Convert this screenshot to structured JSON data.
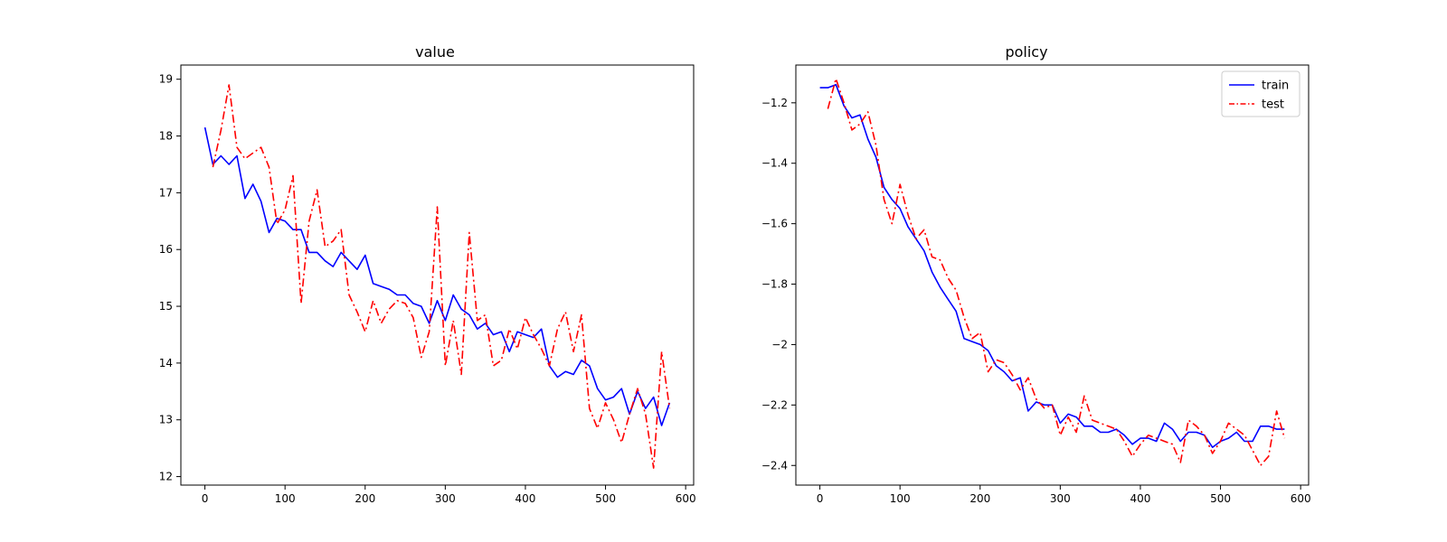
{
  "chart_data": [
    {
      "type": "line",
      "title": "value",
      "xlabel": "",
      "ylabel": "",
      "xlim": [
        -30,
        610
      ],
      "ylim": [
        11.85,
        19.25
      ],
      "xticks": [
        0,
        100,
        200,
        300,
        400,
        500,
        600
      ],
      "yticks": [
        12,
        13,
        14,
        15,
        16,
        17,
        18,
        19
      ],
      "legend": null,
      "series": [
        {
          "name": "train",
          "color": "#0000ff",
          "style": "solid",
          "x": [
            0,
            10,
            20,
            30,
            40,
            50,
            60,
            70,
            80,
            90,
            100,
            110,
            120,
            130,
            140,
            150,
            160,
            170,
            180,
            190,
            200,
            210,
            220,
            230,
            240,
            250,
            260,
            270,
            280,
            290,
            300,
            310,
            320,
            330,
            340,
            350,
            360,
            370,
            380,
            390,
            400,
            410,
            420,
            430,
            440,
            450,
            460,
            470,
            480,
            490,
            500,
            510,
            520,
            530,
            540,
            550,
            560,
            570,
            580
          ],
          "y": [
            18.15,
            17.5,
            17.65,
            17.5,
            17.65,
            16.9,
            17.15,
            16.85,
            16.3,
            16.55,
            16.5,
            16.35,
            16.35,
            15.95,
            15.95,
            15.8,
            15.7,
            15.95,
            15.8,
            15.65,
            15.9,
            15.4,
            15.35,
            15.3,
            15.2,
            15.2,
            15.05,
            15.0,
            14.7,
            15.1,
            14.75,
            15.2,
            14.95,
            14.85,
            14.6,
            14.7,
            14.5,
            14.55,
            14.2,
            14.55,
            14.5,
            14.45,
            14.6,
            13.95,
            13.75,
            13.85,
            13.8,
            14.05,
            13.95,
            13.55,
            13.35,
            13.4,
            13.55,
            13.1,
            13.5,
            13.2,
            13.4,
            12.9,
            13.3
          ]
        },
        {
          "name": "test",
          "color": "#ff0000",
          "style": "dashdot",
          "x": [
            10,
            20,
            30,
            40,
            50,
            60,
            70,
            80,
            90,
            100,
            110,
            120,
            130,
            140,
            150,
            160,
            170,
            180,
            190,
            200,
            210,
            220,
            230,
            240,
            250,
            260,
            270,
            280,
            290,
            300,
            310,
            320,
            330,
            340,
            350,
            360,
            370,
            380,
            390,
            400,
            410,
            420,
            430,
            440,
            450,
            460,
            470,
            480,
            490,
            500,
            510,
            520,
            530,
            540,
            550,
            560,
            570,
            580
          ],
          "y": [
            17.45,
            18.1,
            18.9,
            17.8,
            17.6,
            17.7,
            17.8,
            17.45,
            16.45,
            16.7,
            17.3,
            15.05,
            16.5,
            17.05,
            16.05,
            16.15,
            16.35,
            15.2,
            14.9,
            14.55,
            15.1,
            14.7,
            14.95,
            15.1,
            15.05,
            14.8,
            14.1,
            14.55,
            16.75,
            13.95,
            14.75,
            13.8,
            16.3,
            14.75,
            14.85,
            13.95,
            14.05,
            14.6,
            14.25,
            14.8,
            14.5,
            14.25,
            13.95,
            14.6,
            14.9,
            14.2,
            14.85,
            13.2,
            12.85,
            13.3,
            13.0,
            12.6,
            13.1,
            13.55,
            13.1,
            12.15,
            14.2,
            13.2
          ]
        }
      ]
    },
    {
      "type": "line",
      "title": "policy",
      "xlabel": "",
      "ylabel": "",
      "xlim": [
        -30,
        610
      ],
      "ylim": [
        -2.465,
        -1.075
      ],
      "xticks": [
        0,
        100,
        200,
        300,
        400,
        500,
        600
      ],
      "yticks": [
        -2.4,
        -2.2,
        -2.0,
        -1.8,
        -1.6,
        -1.4,
        -1.2
      ],
      "legend": "top-right",
      "series": [
        {
          "name": "train",
          "color": "#0000ff",
          "style": "solid",
          "x": [
            0,
            10,
            20,
            30,
            40,
            50,
            60,
            70,
            80,
            90,
            100,
            110,
            120,
            130,
            140,
            150,
            160,
            170,
            180,
            190,
            200,
            210,
            220,
            230,
            240,
            250,
            260,
            270,
            280,
            290,
            300,
            310,
            320,
            330,
            340,
            350,
            360,
            370,
            380,
            390,
            400,
            410,
            420,
            430,
            440,
            450,
            460,
            470,
            480,
            490,
            500,
            510,
            520,
            530,
            540,
            550,
            560,
            570,
            580
          ],
          "y": [
            -1.15,
            -1.15,
            -1.14,
            -1.21,
            -1.25,
            -1.24,
            -1.32,
            -1.38,
            -1.48,
            -1.52,
            -1.55,
            -1.61,
            -1.65,
            -1.69,
            -1.76,
            -1.81,
            -1.85,
            -1.89,
            -1.98,
            -1.99,
            -2.0,
            -2.02,
            -2.07,
            -2.09,
            -2.12,
            -2.11,
            -2.22,
            -2.19,
            -2.2,
            -2.2,
            -2.26,
            -2.23,
            -2.24,
            -2.27,
            -2.27,
            -2.29,
            -2.29,
            -2.28,
            -2.3,
            -2.33,
            -2.31,
            -2.31,
            -2.32,
            -2.26,
            -2.28,
            -2.32,
            -2.29,
            -2.29,
            -2.3,
            -2.34,
            -2.32,
            -2.31,
            -2.29,
            -2.32,
            -2.32,
            -2.27,
            -2.27,
            -2.28,
            -2.28
          ]
        },
        {
          "name": "test",
          "color": "#ff0000",
          "style": "dashdot",
          "x": [
            10,
            20,
            30,
            40,
            50,
            60,
            70,
            80,
            90,
            100,
            110,
            120,
            130,
            140,
            150,
            160,
            170,
            180,
            190,
            200,
            210,
            220,
            230,
            240,
            250,
            260,
            270,
            280,
            290,
            300,
            310,
            320,
            330,
            340,
            350,
            360,
            370,
            380,
            390,
            400,
            410,
            420,
            430,
            440,
            450,
            460,
            470,
            480,
            490,
            500,
            510,
            520,
            530,
            540,
            550,
            560,
            570,
            580
          ],
          "y": [
            -1.22,
            -1.12,
            -1.2,
            -1.29,
            -1.27,
            -1.23,
            -1.34,
            -1.52,
            -1.6,
            -1.47,
            -1.57,
            -1.65,
            -1.62,
            -1.71,
            -1.72,
            -1.78,
            -1.82,
            -1.91,
            -1.98,
            -1.96,
            -2.09,
            -2.05,
            -2.06,
            -2.1,
            -2.15,
            -2.11,
            -2.18,
            -2.21,
            -2.2,
            -2.3,
            -2.24,
            -2.29,
            -2.17,
            -2.25,
            -2.26,
            -2.27,
            -2.28,
            -2.32,
            -2.37,
            -2.33,
            -2.3,
            -2.31,
            -2.32,
            -2.33,
            -2.39,
            -2.25,
            -2.27,
            -2.3,
            -2.36,
            -2.32,
            -2.26,
            -2.28,
            -2.3,
            -2.35,
            -2.4,
            -2.37,
            -2.22,
            -2.31
          ]
        }
      ]
    }
  ]
}
